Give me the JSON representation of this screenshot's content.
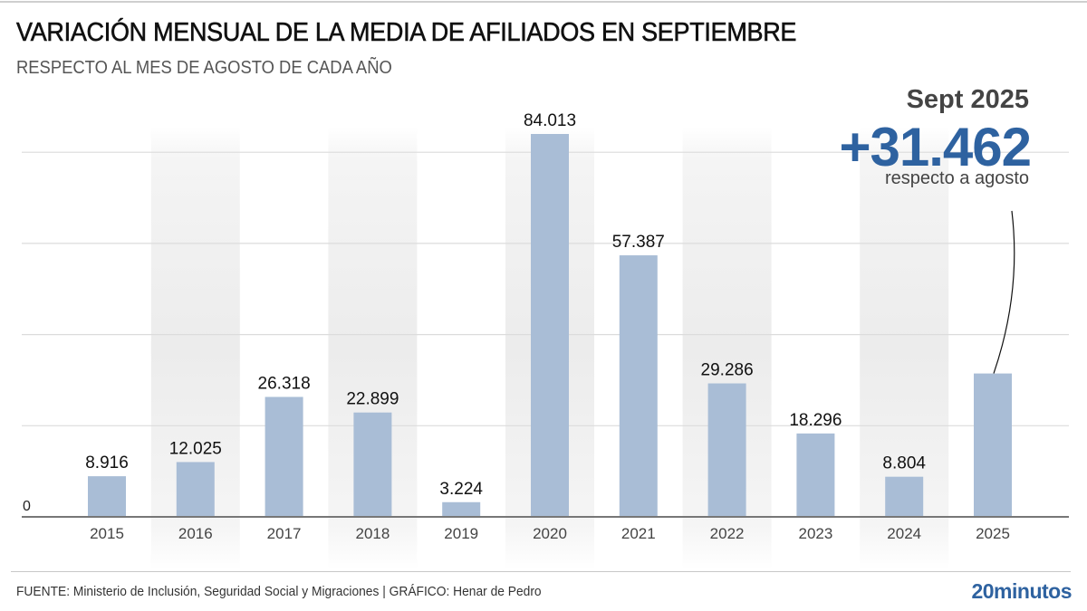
{
  "header": {
    "title": "VARIACIÓN MENSUAL DE LA MEDIA DE AFILIADOS EN SEPTIEMBRE",
    "subtitle": "RESPECTO AL MES DE AGOSTO DE CADA AÑO"
  },
  "callout": {
    "label": "Sept 2025",
    "value": "+31.462",
    "note": "respecto a agosto",
    "color": "#2e62a0"
  },
  "footer": {
    "source": "FUENTE: Ministerio de Inclusión, Seguridad Social y Migraciones  |  GRÁFICO: Henar de Pedro",
    "brand": "20minutos"
  },
  "colors": {
    "bar": "#a9bdd6",
    "band": "#efefef",
    "grid": "#dcdcdc",
    "axis": "#777777",
    "accent": "#2e62a0"
  },
  "chart_data": {
    "type": "bar",
    "title": "VARIACIÓN MENSUAL DE LA MEDIA DE AFILIADOS EN SEPTIEMBRE",
    "subtitle": "RESPECTO AL MES DE AGOSTO DE CADA AÑO",
    "xlabel": "",
    "ylabel": "",
    "categories": [
      "2015",
      "2016",
      "2017",
      "2018",
      "2019",
      "2020",
      "2021",
      "2022",
      "2023",
      "2024",
      "2025"
    ],
    "values": [
      8916,
      12025,
      26318,
      22899,
      3224,
      84013,
      57387,
      29286,
      18296,
      8804,
      31462
    ],
    "data_labels": [
      "8.916",
      "12.025",
      "26.318",
      "22.899",
      "3.224",
      "84.013",
      "57.387",
      "29.286",
      "18.296",
      "8.804",
      ""
    ],
    "ylim": [
      0,
      88000
    ],
    "y_ticks": [
      0,
      20000,
      40000,
      60000,
      80000
    ],
    "y_tick_labels": [
      "0"
    ],
    "grid": true,
    "shaded_bands": [
      "2016",
      "2018",
      "2020",
      "2022",
      "2024"
    ],
    "highlight": {
      "category": "2025",
      "label": "Sept 2025",
      "value_label": "+31.462",
      "note": "respecto a agosto"
    }
  }
}
